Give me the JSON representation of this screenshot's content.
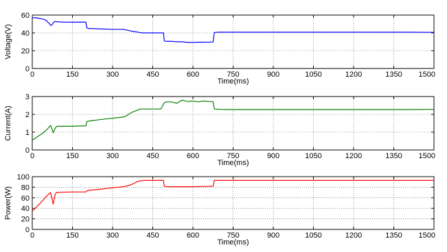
{
  "chart_data": [
    {
      "type": "line",
      "xlabel": "Time(ms)",
      "ylabel": "Voltage(V)",
      "xlim": [
        0,
        1500
      ],
      "ylim": [
        0,
        60
      ],
      "xticks": [
        0,
        150,
        300,
        450,
        600,
        750,
        900,
        1050,
        1200,
        1350,
        1500
      ],
      "yticks": [
        0,
        20,
        40,
        60
      ],
      "grid": true,
      "color": "#0000ff",
      "series": [
        {
          "x": [
            0,
            10,
            20,
            30,
            40,
            50,
            58,
            65,
            70,
            75,
            80,
            85,
            90,
            100,
            120,
            150,
            180,
            200,
            204,
            210,
            250,
            300,
            340,
            370,
            400,
            410,
            420,
            450,
            480,
            490,
            493,
            500,
            520,
            540,
            560,
            580,
            600,
            630,
            660,
            675,
            680,
            700,
            750,
            800,
            900,
            1000,
            1100,
            1200,
            1300,
            1400,
            1500
          ],
          "y": [
            57,
            57,
            56.6,
            56,
            55.5,
            54.5,
            52,
            50,
            48.2,
            49.5,
            52,
            52.8,
            52.6,
            52.3,
            52.1,
            52,
            52,
            52,
            45.5,
            45,
            44.5,
            44,
            44,
            42,
            40.5,
            40,
            40,
            40,
            40,
            40,
            31,
            30.5,
            30.5,
            30,
            30,
            29.2,
            29.3,
            29.5,
            29.6,
            29.8,
            40.5,
            40.8,
            40.8,
            40.8,
            40.8,
            40.8,
            40.8,
            40.8,
            40.8,
            40.8,
            40.6
          ]
        }
      ]
    },
    {
      "type": "line",
      "xlabel": "Time(ms)",
      "ylabel": "Current(A)",
      "xlim": [
        0,
        1500
      ],
      "ylim": [
        0,
        3
      ],
      "xticks": [
        0,
        150,
        300,
        450,
        600,
        750,
        900,
        1050,
        1200,
        1350,
        1500
      ],
      "yticks": [
        0,
        1,
        2,
        3
      ],
      "grid": true,
      "color": "#008000",
      "series": [
        {
          "x": [
            0,
            20,
            40,
            55,
            68,
            72,
            78,
            85,
            90,
            100,
            120,
            150,
            180,
            200,
            204,
            210,
            250,
            300,
            340,
            350,
            370,
            390,
            400,
            410,
            420,
            450,
            480,
            493,
            500,
            520,
            540,
            550,
            560,
            580,
            600,
            620,
            640,
            660,
            675,
            680,
            700,
            750,
            800,
            900,
            1000,
            1100,
            1200,
            1300,
            1400,
            1500
          ],
          "y": [
            0.55,
            0.75,
            0.95,
            1.15,
            1.38,
            1.25,
            0.97,
            1.2,
            1.32,
            1.33,
            1.33,
            1.33,
            1.35,
            1.35,
            1.6,
            1.62,
            1.7,
            1.78,
            1.85,
            1.9,
            2.1,
            2.22,
            2.28,
            2.3,
            2.3,
            2.3,
            2.3,
            2.65,
            2.7,
            2.7,
            2.62,
            2.72,
            2.8,
            2.72,
            2.75,
            2.7,
            2.75,
            2.72,
            2.72,
            2.3,
            2.28,
            2.27,
            2.27,
            2.27,
            2.27,
            2.27,
            2.27,
            2.27,
            2.27,
            2.28
          ]
        }
      ]
    },
    {
      "type": "line",
      "xlabel": "Time(ms)",
      "ylabel": "Power(W)",
      "xlim": [
        0,
        1500
      ],
      "ylim": [
        0,
        100
      ],
      "xticks": [
        0,
        150,
        300,
        450,
        600,
        750,
        900,
        1050,
        1200,
        1350,
        1500
      ],
      "yticks": [
        0,
        20,
        40,
        60,
        80,
        100
      ],
      "grid": true,
      "color": "#ff0000",
      "series": [
        {
          "x": [
            0,
            15,
            30,
            45,
            55,
            68,
            72,
            78,
            85,
            90,
            110,
            150,
            180,
            200,
            204,
            210,
            250,
            300,
            340,
            350,
            370,
            390,
            400,
            420,
            450,
            480,
            490,
            493,
            500,
            520,
            550,
            600,
            650,
            675,
            680,
            700,
            800,
            900,
            1000,
            1100,
            1200,
            1300,
            1400,
            1500
          ],
          "y": [
            35,
            42,
            50,
            58,
            64,
            70,
            62,
            48,
            66,
            70,
            70.5,
            71,
            71,
            71,
            73,
            74,
            76,
            79,
            81,
            82,
            85,
            90,
            92,
            93,
            93,
            93,
            93,
            82,
            81,
            81,
            81,
            81,
            81.5,
            82,
            93,
            93,
            93,
            93,
            93,
            93,
            93,
            93,
            93,
            93
          ]
        }
      ]
    }
  ]
}
